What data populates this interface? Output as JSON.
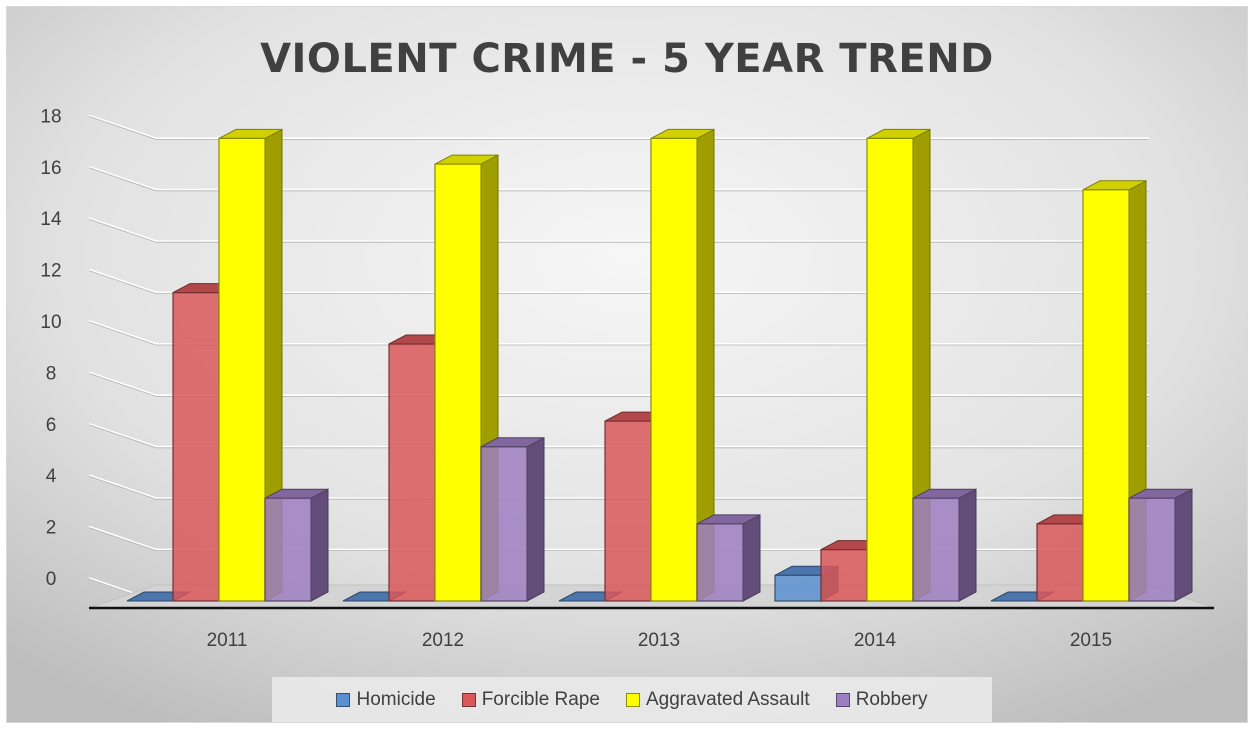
{
  "chart_data": {
    "type": "bar",
    "style": "3d-clustered-column",
    "title": "VIOLENT CRIME - 5 YEAR TREND",
    "categories": [
      "2011",
      "2012",
      "2013",
      "2014",
      "2015"
    ],
    "series": [
      {
        "name": "Homicide",
        "values": [
          0,
          0,
          0,
          1,
          0
        ]
      },
      {
        "name": "Forcible Rape",
        "values": [
          12,
          10,
          7,
          2,
          3
        ]
      },
      {
        "name": "Aggravated Assault",
        "values": [
          18,
          17,
          18,
          18,
          16
        ]
      },
      {
        "name": "Robbery",
        "values": [
          4,
          6,
          3,
          4,
          4
        ]
      }
    ],
    "y_ticks": [
      "0",
      "2",
      "4",
      "6",
      "8",
      "10",
      "12",
      "14",
      "16",
      "18"
    ],
    "ylim": [
      0,
      18
    ],
    "grid": true,
    "legend_position": "bottom",
    "colors": {
      "Homicide": "#5b8fd0",
      "Forcible Rape": "#d9585a",
      "Aggravated Assault": "#ffff00",
      "Robbery": "#9e7ec2"
    },
    "background_gradient": [
      "#f4f4f4",
      "#bfbfbf"
    ]
  }
}
